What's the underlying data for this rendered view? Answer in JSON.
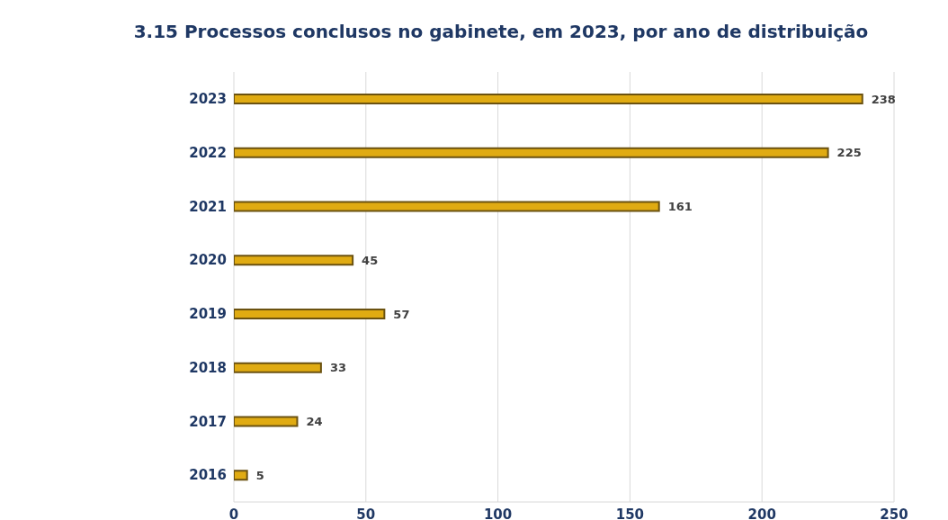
{
  "chart_data": {
    "type": "bar",
    "orientation": "horizontal",
    "title": "3.15 Processos conclusos no gabinete, em 2023, por ano de distribuição",
    "categories": [
      "2023",
      "2022",
      "2021",
      "2020",
      "2019",
      "2018",
      "2017",
      "2016"
    ],
    "values": [
      238,
      225,
      161,
      45,
      57,
      33,
      24,
      5
    ],
    "color": "#e0ab12",
    "xlim": [
      0,
      250
    ],
    "xticks": [
      0,
      50,
      100,
      150,
      200,
      250
    ],
    "grid": "x",
    "data_labels": true
  }
}
